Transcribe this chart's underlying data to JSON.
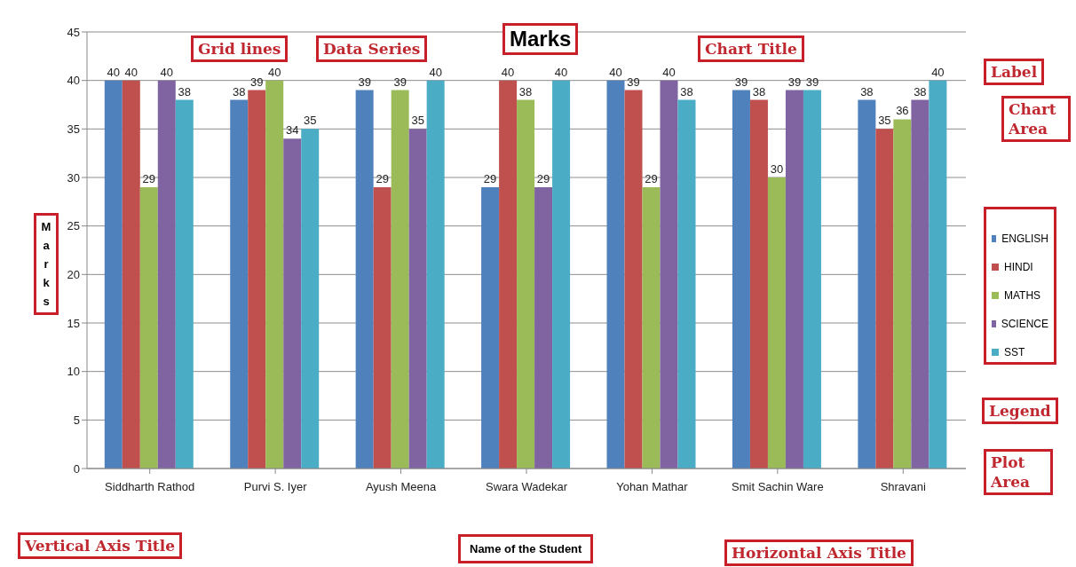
{
  "chart_data": {
    "type": "bar",
    "title": "Marks",
    "xlabel": "Name of the Student",
    "ylabel": "Marks",
    "categories": [
      "Siddharth Rathod",
      "Purvi S. Iyer",
      "Ayush Meena",
      "Swara Wadekar",
      "Yohan Mathar",
      "Smit Sachin Ware",
      "Shravani"
    ],
    "series": [
      {
        "name": "ENGLISH",
        "color": "#4f81bd",
        "values": [
          40,
          38,
          39,
          29,
          40,
          39,
          38
        ]
      },
      {
        "name": "HINDI",
        "color": "#c0504d",
        "values": [
          40,
          39,
          29,
          40,
          39,
          38,
          35
        ]
      },
      {
        "name": "MATHS",
        "color": "#9bbb59",
        "values": [
          29,
          40,
          39,
          38,
          29,
          30,
          36
        ]
      },
      {
        "name": "SCIENCE",
        "color": "#8064a2",
        "values": [
          40,
          34,
          35,
          29,
          40,
          39,
          38
        ]
      },
      {
        "name": "SST",
        "color": "#4bacc6",
        "values": [
          38,
          35,
          40,
          40,
          38,
          39,
          40
        ]
      }
    ],
    "ylim": [
      0,
      45
    ],
    "yticks": [
      0,
      5,
      10,
      15,
      20,
      25,
      30,
      35,
      40,
      45
    ],
    "grid": "y",
    "legend": "right",
    "data_labels": true,
    "annotations": [
      "Grid lines",
      "Data Series",
      "Chart Title",
      "Label",
      "Chart Area",
      "Legend",
      "Plot Area",
      "Vertical Axis Title",
      "Horizontal Axis Title"
    ]
  }
}
